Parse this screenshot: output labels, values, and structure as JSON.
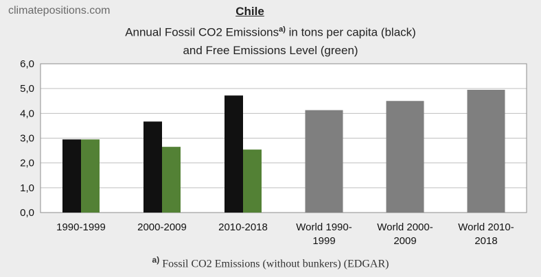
{
  "site_label": "climatepositions.com",
  "country": "Chile",
  "title_line1": "Annual Fossil CO2 Emissions",
  "title_sup": "a)",
  "title_line1_rest": " in tons per capita (black)",
  "title_line2": "and Free Emissions Level (green)",
  "footnote_marker": "a)",
  "footnote_text": " Fossil CO2 Emissions (without bunkers) (EDGAR)",
  "colors": {
    "emissions": "#111111",
    "free_level": "#538135",
    "world": "#7f7f7f",
    "plot_bg": "#ffffff",
    "grid": "#bfbfbf"
  },
  "chart_data": {
    "type": "bar",
    "categories": [
      [
        "1990-1999"
      ],
      [
        "2000-2009"
      ],
      [
        "2010-2018"
      ],
      [
        "World 1990-",
        "1999"
      ],
      [
        "World 2000-",
        "2009"
      ],
      [
        "World 2010-",
        "2018"
      ]
    ],
    "series": [
      {
        "key": "emissions",
        "values": [
          2.95,
          3.67,
          4.72,
          null,
          null,
          null
        ]
      },
      {
        "key": "free_level",
        "values": [
          2.95,
          2.65,
          2.54,
          null,
          null,
          null
        ]
      },
      {
        "key": "world",
        "values": [
          null,
          null,
          null,
          4.13,
          4.5,
          4.95
        ]
      }
    ],
    "ylim": [
      0,
      6
    ],
    "yticks": [
      "0,0",
      "1,0",
      "2,0",
      "3,0",
      "4,0",
      "5,0",
      "6,0"
    ],
    "grid": true
  }
}
